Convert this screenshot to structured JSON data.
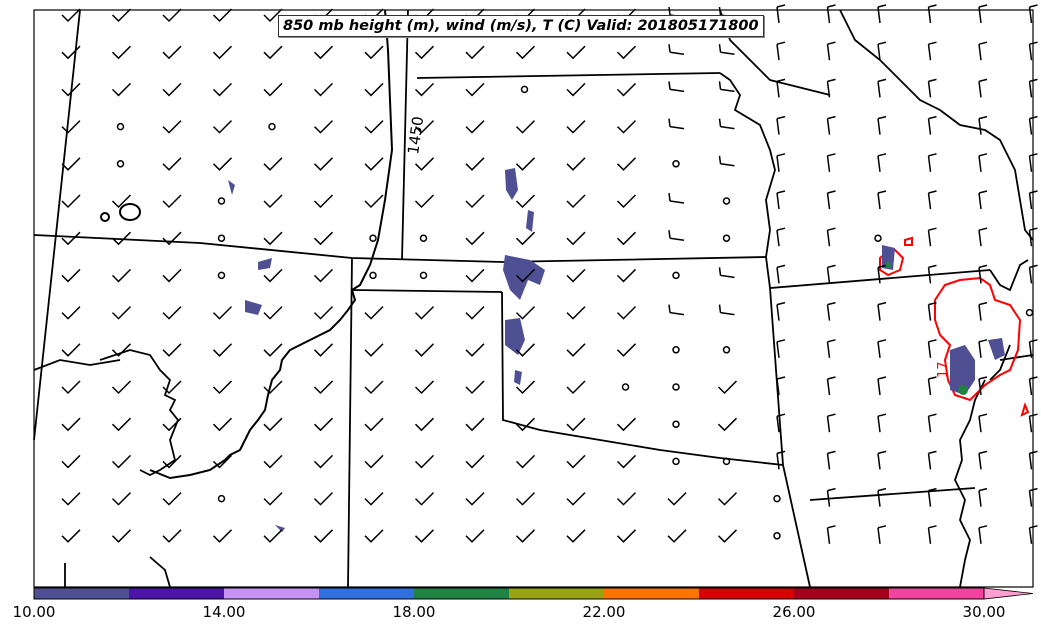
{
  "title": "850 mb height (m), wind (m/s), T (C) Valid: 201805171800",
  "contour_labels": {
    "height": "1450",
    "temperature": "17"
  },
  "colorbar": {
    "tick_labels": [
      "10.00",
      "14.00",
      "18.00",
      "22.00",
      "26.00",
      "30.00"
    ],
    "tick_values": [
      10,
      14,
      18,
      22,
      26,
      30
    ],
    "range": [
      10,
      31
    ],
    "colors": [
      "#4f4f94",
      "#4b15a8",
      "#c593f3",
      "#3070de",
      "#208243",
      "#9aa313",
      "#ff7300",
      "#d80000",
      "#a6001e",
      "#f3439f",
      "#ff9fd2"
    ]
  },
  "colors": {
    "state_lines": "#000000",
    "height_contour": "#000000",
    "temp_contour": "#ff0000",
    "shading_primary": "#4f4f94"
  }
}
